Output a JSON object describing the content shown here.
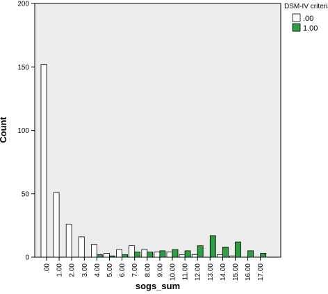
{
  "chart_data": {
    "type": "bar",
    "xlabel": "sogs_sum",
    "ylabel": "Count",
    "ylim": [
      0,
      200
    ],
    "yticks": [
      "0",
      "50",
      "100",
      "150",
      "200"
    ],
    "grid": false,
    "legend_position": "top-right",
    "legend_title": "DSM-IV criteria",
    "categories": [
      ".00",
      "1.00",
      "2.00",
      "3.00",
      "4.00",
      "5.00",
      "6.00",
      "7.00",
      "8.00",
      "9.00",
      "10.00",
      "11.00",
      "12.00",
      "13.00",
      "14.00",
      "15.00",
      "16.00",
      "17.00"
    ],
    "series": [
      {
        "name": ".00",
        "color": "#ffffff",
        "values": [
          152,
          51,
          26,
          16,
          10,
          3,
          6,
          9,
          6,
          4,
          4,
          2,
          2,
          0,
          2,
          1,
          0,
          0
        ]
      },
      {
        "name": "1.00",
        "color": "#2ea043",
        "values": [
          0,
          0,
          0,
          0,
          2,
          1,
          2,
          4,
          4,
          5,
          6,
          5,
          9,
          17,
          8,
          12,
          5,
          3
        ]
      }
    ],
    "plot_background": "#ececec"
  }
}
